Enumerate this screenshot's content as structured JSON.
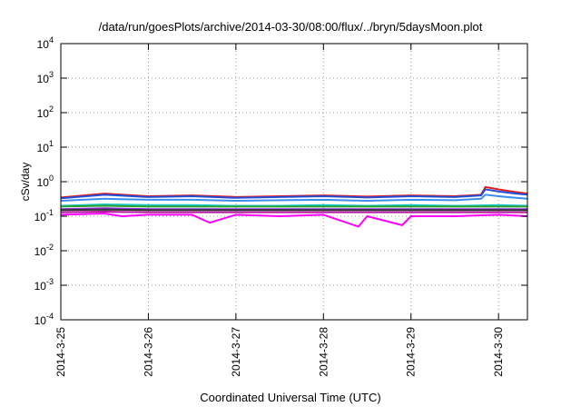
{
  "chart_data": {
    "type": "line",
    "title": "/data/run/goesPlots/archive/2014-03-30/08:00/flux/../bryn/5daysMoon.plot",
    "xlabel": "Coordinated Universal Time (UTC)",
    "ylabel": "cSv/day",
    "yscale": "log",
    "ylim_exponent": [
      -4,
      4
    ],
    "y_tick_labels": [
      {
        "base": "10",
        "exp": "4"
      },
      {
        "base": "10",
        "exp": "3"
      },
      {
        "base": "10",
        "exp": "2"
      },
      {
        "base": "10",
        "exp": "1"
      },
      {
        "base": "10",
        "exp": "0"
      },
      {
        "base": "10",
        "exp": "-1"
      },
      {
        "base": "10",
        "exp": "-2"
      },
      {
        "base": "10",
        "exp": "-3"
      },
      {
        "base": "10",
        "exp": "-4"
      }
    ],
    "x_tick_labels": [
      "2014-3-25",
      "2014-3-26",
      "2014-3-27",
      "2014-3-28",
      "2014-3-29",
      "2014-3-30"
    ],
    "xlim": [
      "2014-03-25 00:00",
      "2014-03-30 08:00"
    ],
    "grid": true,
    "series": [
      {
        "color": "#e41a1c",
        "values": [
          [
            0.0,
            0.35
          ],
          [
            0.5,
            0.45
          ],
          [
            1.0,
            0.38
          ],
          [
            1.5,
            0.4
          ],
          [
            2.0,
            0.36
          ],
          [
            2.5,
            0.38
          ],
          [
            3.0,
            0.4
          ],
          [
            3.5,
            0.37
          ],
          [
            4.0,
            0.4
          ],
          [
            4.5,
            0.38
          ],
          [
            4.8,
            0.42
          ],
          [
            4.85,
            0.7
          ],
          [
            5.0,
            0.6
          ],
          [
            5.2,
            0.5
          ],
          [
            5.33,
            0.45
          ]
        ]
      },
      {
        "color": "#1f4fd6",
        "values": [
          [
            0.0,
            0.33
          ],
          [
            0.5,
            0.42
          ],
          [
            1.0,
            0.36
          ],
          [
            1.5,
            0.38
          ],
          [
            2.0,
            0.34
          ],
          [
            2.5,
            0.36
          ],
          [
            3.0,
            0.38
          ],
          [
            3.5,
            0.35
          ],
          [
            4.0,
            0.38
          ],
          [
            4.5,
            0.36
          ],
          [
            4.8,
            0.4
          ],
          [
            4.85,
            0.6
          ],
          [
            5.0,
            0.52
          ],
          [
            5.2,
            0.45
          ],
          [
            5.33,
            0.42
          ]
        ]
      },
      {
        "color": "#3a8df0",
        "values": [
          [
            0.0,
            0.28
          ],
          [
            0.5,
            0.32
          ],
          [
            1.0,
            0.3
          ],
          [
            1.5,
            0.3
          ],
          [
            2.0,
            0.28
          ],
          [
            2.5,
            0.29
          ],
          [
            3.0,
            0.3
          ],
          [
            3.5,
            0.28
          ],
          [
            4.0,
            0.3
          ],
          [
            4.5,
            0.29
          ],
          [
            4.8,
            0.32
          ],
          [
            4.85,
            0.42
          ],
          [
            5.0,
            0.38
          ],
          [
            5.2,
            0.34
          ],
          [
            5.33,
            0.32
          ]
        ]
      },
      {
        "color": "#18c8c8",
        "values": [
          [
            0.0,
            0.2
          ],
          [
            0.5,
            0.22
          ],
          [
            1.0,
            0.21
          ],
          [
            1.5,
            0.21
          ],
          [
            2.0,
            0.2
          ],
          [
            2.5,
            0.2
          ],
          [
            3.0,
            0.21
          ],
          [
            3.5,
            0.2
          ],
          [
            4.0,
            0.21
          ],
          [
            4.5,
            0.2
          ],
          [
            5.0,
            0.21
          ],
          [
            5.33,
            0.2
          ]
        ]
      },
      {
        "color": "#2ca02c",
        "values": [
          [
            0.0,
            0.19
          ],
          [
            0.5,
            0.2
          ],
          [
            1.0,
            0.19
          ],
          [
            1.5,
            0.19
          ],
          [
            2.0,
            0.19
          ],
          [
            2.5,
            0.19
          ],
          [
            3.0,
            0.19
          ],
          [
            3.5,
            0.19
          ],
          [
            4.0,
            0.19
          ],
          [
            4.5,
            0.19
          ],
          [
            5.0,
            0.19
          ],
          [
            5.33,
            0.19
          ]
        ]
      },
      {
        "color": "#8a2be2",
        "values": [
          [
            0.0,
            0.16
          ],
          [
            0.5,
            0.17
          ],
          [
            1.0,
            0.16
          ],
          [
            1.5,
            0.16
          ],
          [
            2.0,
            0.16
          ],
          [
            2.5,
            0.16
          ],
          [
            3.0,
            0.16
          ],
          [
            3.5,
            0.16
          ],
          [
            4.0,
            0.16
          ],
          [
            4.5,
            0.16
          ],
          [
            5.0,
            0.16
          ],
          [
            5.33,
            0.16
          ]
        ]
      },
      {
        "color": "#333333",
        "values": [
          [
            0.0,
            0.15
          ],
          [
            0.5,
            0.155
          ],
          [
            1.0,
            0.15
          ],
          [
            1.5,
            0.15
          ],
          [
            2.0,
            0.15
          ],
          [
            2.5,
            0.15
          ],
          [
            3.0,
            0.15
          ],
          [
            3.5,
            0.15
          ],
          [
            4.0,
            0.15
          ],
          [
            4.5,
            0.15
          ],
          [
            5.0,
            0.15
          ],
          [
            5.33,
            0.15
          ]
        ]
      },
      {
        "color": "#b5179e",
        "values": [
          [
            0.0,
            0.13
          ],
          [
            0.5,
            0.135
          ],
          [
            1.0,
            0.13
          ],
          [
            1.5,
            0.13
          ],
          [
            2.0,
            0.13
          ],
          [
            2.5,
            0.13
          ],
          [
            3.0,
            0.13
          ],
          [
            3.5,
            0.13
          ],
          [
            4.0,
            0.13
          ],
          [
            4.5,
            0.13
          ],
          [
            5.0,
            0.13
          ],
          [
            5.33,
            0.13
          ]
        ]
      },
      {
        "color": "#ff00ff",
        "values": [
          [
            0.0,
            0.11
          ],
          [
            0.5,
            0.12
          ],
          [
            0.7,
            0.1
          ],
          [
            1.0,
            0.11
          ],
          [
            1.5,
            0.11
          ],
          [
            1.7,
            0.065
          ],
          [
            2.0,
            0.11
          ],
          [
            2.5,
            0.1
          ],
          [
            3.0,
            0.11
          ],
          [
            3.4,
            0.05
          ],
          [
            3.5,
            0.1
          ],
          [
            3.9,
            0.055
          ],
          [
            4.0,
            0.1
          ],
          [
            4.5,
            0.1
          ],
          [
            5.0,
            0.11
          ],
          [
            5.33,
            0.1
          ]
        ]
      }
    ]
  }
}
